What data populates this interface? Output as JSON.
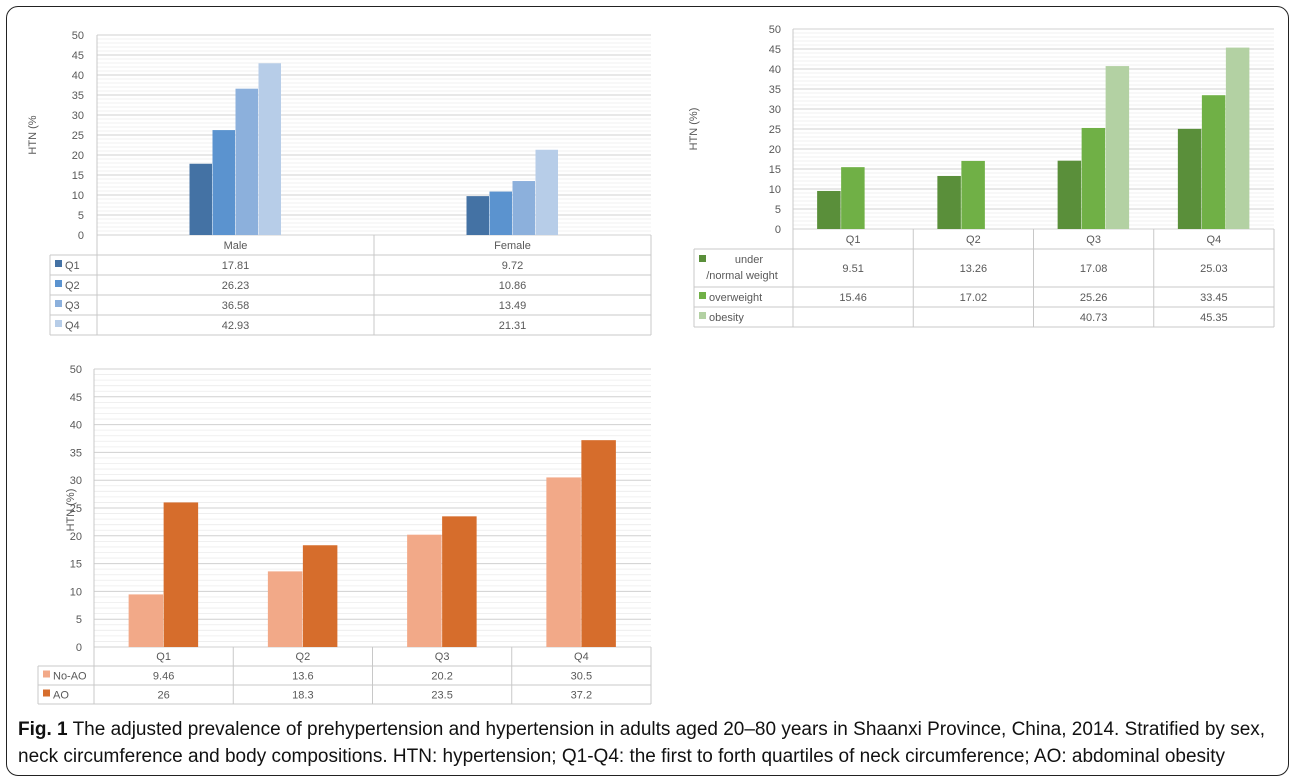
{
  "caption": {
    "label": "Fig. 1",
    "text": "The adjusted prevalence of prehypertension and hypertension in adults aged 20–80 years in Shaanxi Province, China, 2014. Stratified by sex, neck circumference and body compositions. HTN: hypertension; Q1-Q4: the first to forth quartiles of neck circumference; AO: abdominal obesity"
  },
  "chart_data": [
    {
      "type": "bar",
      "ylabel": "HTN (%",
      "ylim": [
        0,
        50
      ],
      "yticks": [
        0,
        5,
        10,
        15,
        20,
        25,
        30,
        35,
        40,
        45,
        50
      ],
      "categories": [
        "Male",
        "Female"
      ],
      "data_table": true,
      "series": [
        {
          "name": "Q1",
          "color": "#4472a4",
          "values": [
            17.81,
            9.72
          ]
        },
        {
          "name": "Q2",
          "color": "#5b93cf",
          "values": [
            26.23,
            10.86
          ]
        },
        {
          "name": "Q3",
          "color": "#8cb0dc",
          "values": [
            36.58,
            13.49
          ]
        },
        {
          "name": "Q4",
          "color": "#b7cde8",
          "values": [
            42.93,
            21.31
          ]
        }
      ]
    },
    {
      "type": "bar",
      "ylabel": "HTN (%)",
      "ylim": [
        0,
        50
      ],
      "yticks": [
        0,
        5,
        10,
        15,
        20,
        25,
        30,
        35,
        40,
        45,
        50
      ],
      "categories": [
        "Q1",
        "Q2",
        "Q3",
        "Q4"
      ],
      "data_table": true,
      "series": [
        {
          "name": "under /normal weight",
          "color": "#5a8f3a",
          "values": [
            9.51,
            13.26,
            17.08,
            25.03
          ]
        },
        {
          "name": "overweight",
          "color": "#70b046",
          "values": [
            15.46,
            17.02,
            25.26,
            33.45
          ]
        },
        {
          "name": "obesity",
          "color": "#b3d1a3",
          "values": [
            null,
            null,
            40.73,
            45.35
          ]
        }
      ]
    },
    {
      "type": "bar",
      "ylabel": "HTN (%)",
      "ylim": [
        0,
        50
      ],
      "yticks": [
        0,
        5,
        10,
        15,
        20,
        25,
        30,
        35,
        40,
        45,
        50
      ],
      "categories": [
        "Q1",
        "Q2",
        "Q3",
        "Q4"
      ],
      "data_table": true,
      "series": [
        {
          "name": "No-AO",
          "color": "#f2a988",
          "values": [
            9.46,
            13.6,
            20.2,
            30.5
          ]
        },
        {
          "name": "AO",
          "color": "#d66d2c",
          "values": [
            26,
            18.3,
            23.5,
            37.2
          ]
        }
      ]
    }
  ]
}
